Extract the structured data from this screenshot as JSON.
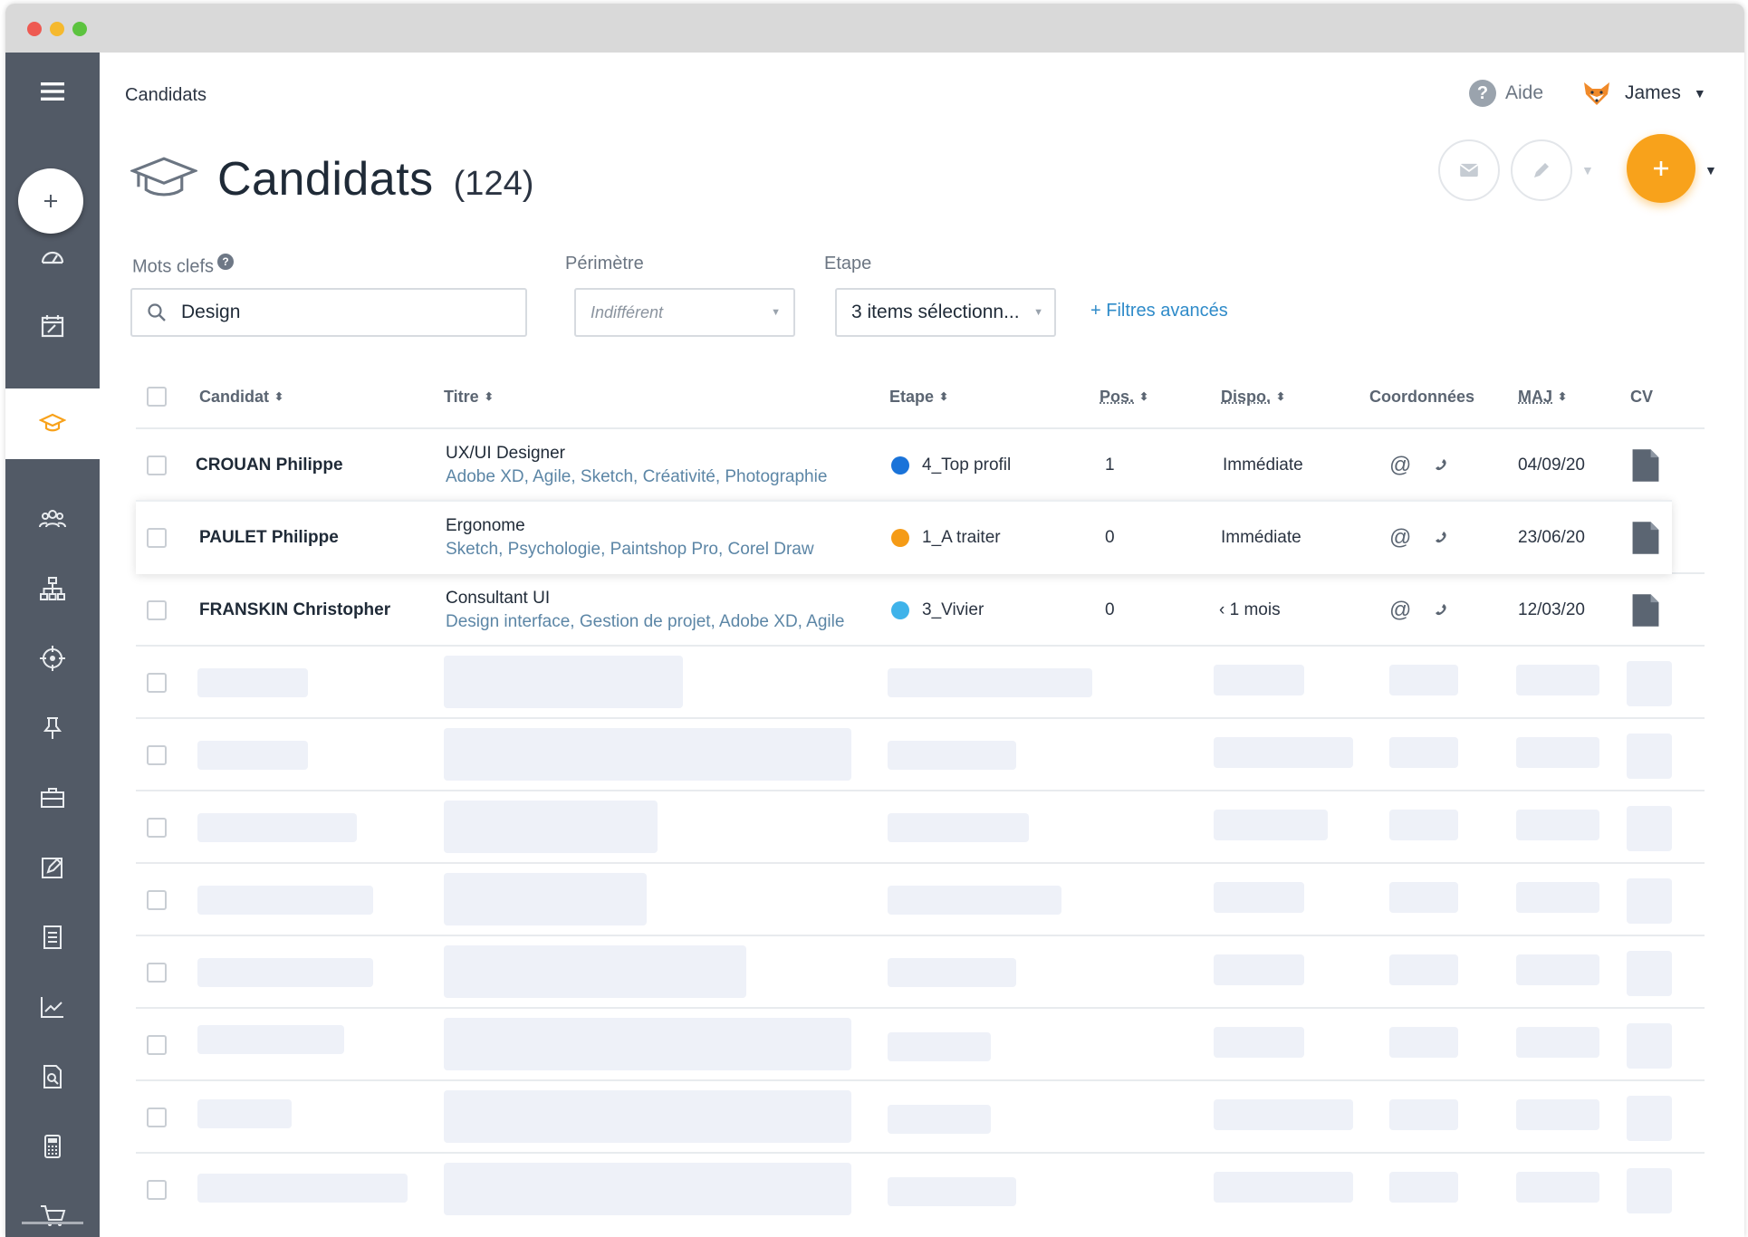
{
  "breadcrumb": "Candidats",
  "header": {
    "help_label": "Aide",
    "user_name": "James"
  },
  "page": {
    "title": "Candidats",
    "count": "(124)"
  },
  "filters": {
    "keywords_label": "Mots clefs",
    "keywords_value": "Design",
    "perimeter_label": "Périmètre",
    "perimeter_value": "Indifférent",
    "step_label": "Etape",
    "step_value": "3 items sélectionn...",
    "advanced_label": "+ Filtres avancés"
  },
  "table": {
    "headers": {
      "candidat": "Candidat",
      "titre": "Titre",
      "etape": "Etape",
      "pos": "Pos.",
      "dispo": "Dispo.",
      "coordonnees": "Coordonnées",
      "maj": "MAJ",
      "cv": "CV"
    },
    "rows": [
      {
        "name": "CROUAN Philippe",
        "title": "UX/UI Designer",
        "skills": "Adobe XD, Agile, Sketch, Créativité, Photographie",
        "step": "4_Top profil",
        "step_color": "#1a73d9",
        "pos": "1",
        "dispo": "Immédiate",
        "email_glyph": "@",
        "maj": "04/09/20"
      },
      {
        "name": "PAULET Philippe",
        "title": "Ergonome",
        "skills": "Sketch, Psychologie, Paintshop Pro, Corel Draw",
        "step": "1_A traiter",
        "step_color": "#f59b16",
        "pos": "0",
        "dispo": "Immédiate",
        "email_glyph": "@",
        "maj": "23/06/20"
      },
      {
        "name": "FRANSKIN Christopher",
        "title": "Consultant UI",
        "skills": "Design interface, Gestion de projet, Adobe XD, Agile",
        "step": "3_Vivier",
        "step_color": "#3fb3ea",
        "pos": "0",
        "dispo": "‹ 1 mois",
        "email_glyph": "@",
        "maj": "12/03/20"
      }
    ]
  },
  "colors": {
    "sidebar": "#525a66",
    "accent_orange": "#f8a21b",
    "link_blue": "#2f8bc9",
    "skeleton": "#eef1f8"
  },
  "sidebar_icons": [
    "menu-icon",
    "add-icon",
    "dashboard-icon",
    "calendar-icon",
    "graduation-cap-icon",
    "people-icon",
    "org-chart-icon",
    "target-icon",
    "pin-icon",
    "briefcase-icon",
    "edit-icon",
    "document-icon",
    "chart-icon",
    "file-search-icon",
    "calculator-icon",
    "cart-icon"
  ]
}
